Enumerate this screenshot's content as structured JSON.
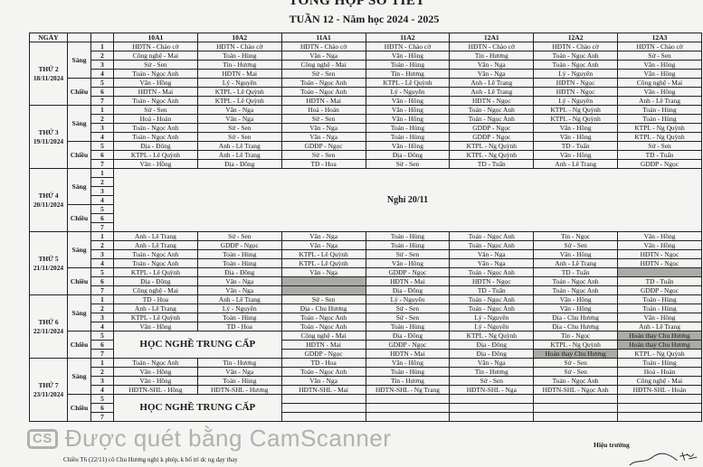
{
  "title": "TỔNG HỢP SỐ TIẾT",
  "subtitle": "TUẦN 12 - Năm học 2024 - 2025",
  "headers": {
    "day": "NGÀY",
    "classes": [
      "10A1",
      "10A2",
      "11A1",
      "11A2",
      "12A1",
      "12A2",
      "12A3"
    ]
  },
  "sessions": {
    "morning": "Sáng",
    "afternoon": "Chiều"
  },
  "periods": [
    "1",
    "2",
    "3",
    "4",
    "5",
    "6",
    "7"
  ],
  "shade_color": "#a9aba6",
  "days": [
    {
      "label": "THỨ 2",
      "date": "18/11/2024",
      "rows": [
        [
          "HĐTN - Chào cờ",
          "HĐTN - Chào cờ",
          "HĐTN - Chào cờ",
          "HĐTN - Chào cờ",
          "HĐTN - Chào cờ",
          "HĐTN - Chào cờ",
          "HĐTN - Chào cờ"
        ],
        [
          "Công nghệ - Mai",
          "Toán - Hùng",
          "Văn - Nga",
          "Văn - Hồng",
          "Tin - Hương",
          "Toán - Ngọc Anh",
          "Sử - Sen"
        ],
        [
          "Sử - Sen",
          "Tin - Hương",
          "Công nghệ - Mai",
          "Toán - Hùng",
          "Văn - Nga",
          "Toán - Ngọc Anh",
          "Văn - Hồng"
        ],
        [
          "Toán - Ngọc Anh",
          "HĐTN - Mai",
          "Sử - Sen",
          "Tin - Hương",
          "Văn - Nga",
          "Lý - Nguyên",
          "Văn - Hồng"
        ],
        [
          "Văn - Hồng",
          "Lý - Nguyên",
          "Toán - Ngọc Anh",
          "KTPL - Lê Quỳnh",
          "Anh - Lê Trang",
          "HĐTN - Ngọc",
          "Công nghệ - Mai"
        ],
        [
          "HĐTN - Mai",
          "KTPL - Lê Quỳnh",
          "Toán - Ngọc Anh",
          "Lý - Nguyên",
          "Anh - Lê Trang",
          "HĐTN - Ngọc",
          "Văn - Hồng"
        ],
        [
          "Toán - Ngọc Anh",
          "KTPL - Lê Quỳnh",
          "HĐTN - Mai",
          "Văn - Hồng",
          "HĐTN - Ngọc",
          "Lý - Nguyên",
          "Anh - Lê Trang"
        ]
      ]
    },
    {
      "label": "THỨ 3",
      "date": "19/11/2024",
      "rows": [
        [
          "Sử - Sen",
          "Văn - Nga",
          "Hoá - Hoán",
          "Văn - Hồng",
          "Toán - Ngọc Anh",
          "KTPL - Ng Quỳnh",
          "Toán - Hùng"
        ],
        [
          "Hoá - Hoán",
          "Văn - Nga",
          "Sử - Sen",
          "Văn - Hồng",
          "Toán - Ngọc Anh",
          "KTPL - Ng Quỳnh",
          "Toán - Hùng"
        ],
        [
          "Toán - Ngọc Anh",
          "Sử - Sen",
          "Văn - Nga",
          "Toán - Hùng",
          "GDĐP - Ngọc",
          "Văn - Hồng",
          "KTPL - Ng Quỳnh"
        ],
        [
          "Toán - Ngọc Anh",
          "Sử - Sen",
          "Văn - Nga",
          "Toán - Hùng",
          "GDĐP - Ngọc",
          "Văn - Hồng",
          "KTPL - Ng Quỳnh"
        ],
        [
          "Địa - Đông",
          "Anh - Lê Trang",
          "GDĐP - Ngọc",
          "Văn - Hồng",
          "KTPL - Ng Quỳnh",
          "TD - Tuấn",
          "Sử - Sen"
        ],
        [
          "KTPL - Lê Quỳnh",
          "Anh - Lê Trang",
          "Sử - Sen",
          "Địa - Đông",
          "KTPL - Ng Quỳnh",
          "Văn - Hồng",
          "TD - Tuấn"
        ],
        [
          "Văn - Hồng",
          "Địa - Đông",
          "TD - Hoa",
          "Sử - Sen",
          "TD - Tuấn",
          "Anh - Lê Trang",
          "GDĐP - Ngọc"
        ]
      ]
    },
    {
      "label": "THỨ 4",
      "date": "20/11/2024",
      "holiday": "Nghỉ 20/11"
    },
    {
      "label": "THỨ 5",
      "date": "21/11/2024",
      "rows": [
        [
          "Anh - Lê Trang",
          "Sử - Sen",
          "Văn - Nga",
          "Toán - Hùng",
          "Toán - Ngọc Anh",
          "Tin - Ngọc",
          "Văn - Hồng"
        ],
        [
          "Anh - Lê Trang",
          "GDĐP - Ngọc",
          "Văn - Nga",
          "Toán - Hùng",
          "Toán - Ngọc Anh",
          "Sử - Sen",
          "Văn - Hồng"
        ],
        [
          "Toán - Ngọc Anh",
          "Toán - Hùng",
          "KTPL - Lê Quỳnh",
          "Sử - Sen",
          "Văn - Nga",
          "Văn - Hồng",
          "HĐTN - Ngọc"
        ],
        [
          "Toán - Ngọc Anh",
          "Toán - Hùng",
          "KTPL - Lê Quỳnh",
          "Văn - Hồng",
          "Văn - Nga",
          "Anh - Lê Trang",
          "HĐTN - Ngọc"
        ],
        [
          "KTPL - Lê Quỳnh",
          "Địa - Đông",
          "Văn - Nga",
          "GDĐP - Ngọc",
          "Toán - Ngọc Anh",
          "TD - Tuấn",
          ""
        ],
        [
          "Địa - Đông",
          "Văn - Nga",
          "",
          "HĐTN - Mai",
          "HĐTN - Ngọc",
          "Toán - Ngọc Anh",
          "TD - Tuấn"
        ],
        [
          "Công nghệ - Mai",
          "Văn - Nga",
          "",
          "Địa - Đông",
          "TD - Tuấn",
          "Toán - Ngọc Anh",
          "GDĐP - Ngọc"
        ]
      ],
      "shaded": [
        [
          5,
          6
        ],
        [
          6,
          2
        ],
        [
          7,
          2
        ]
      ]
    },
    {
      "label": "THỨ 6",
      "date": "22/11/2024",
      "afternoon_merge": "HỌC NGHỀ TRUNG CẤP",
      "rows": [
        [
          "TD - Hoa",
          "Anh - Lê Trang",
          "Sử - Sen",
          "Lý - Nguyên",
          "Toán - Ngọc Anh",
          "Văn - Hồng",
          "Toán - Hùng"
        ],
        [
          "Anh - Lê Trang",
          "Lý - Nguyên",
          "Địa - Chu Hương",
          "Sử - Sen",
          "Toán - Ngọc Anh",
          "Văn - Hồng",
          "Toán - Hùng"
        ],
        [
          "KTPL - Lê Quỳnh",
          "Toán - Hùng",
          "Toán - Ngọc Anh",
          "Sử - Sen",
          "Lý - Nguyên",
          "Địa - Chu Hương",
          "Văn - Hồng"
        ],
        [
          "Văn - Hồng",
          "TD - Hoa",
          "Toán - Ngọc Anh",
          "Toán - Hùng",
          "Lý - Nguyên",
          "Địa - Chu Hương",
          "Anh - Lê Trang"
        ],
        [
          "",
          "",
          "Công nghệ - Mai",
          "Địa - Đông",
          "KTPL - Ng Quỳnh",
          "Tin - Ngọc",
          "Hoán thay Chu Hương"
        ],
        [
          "",
          "",
          "HĐTN - Mai",
          "GDĐP - Ngọc",
          "Địa - Đông",
          "KTPL - Ng Quỳnh",
          "Hoán thay Chu Hương"
        ],
        [
          "",
          "",
          "GDĐP - Ngọc",
          "HĐTN - Mai",
          "Địa - Đông",
          "Hoán thay Chu Hương",
          "KTPL - Ng Quỳnh"
        ]
      ],
      "shaded": [
        [
          5,
          6
        ],
        [
          6,
          6
        ],
        [
          7,
          5
        ]
      ]
    },
    {
      "label": "THỨ 7",
      "date": "23/11/2024",
      "afternoon_merge": "HỌC NGHỀ TRUNG CẤP",
      "rows": [
        [
          "Toán - Ngọc Anh",
          "Tin - Hương",
          "TD - Hoa",
          "Văn - Hồng",
          "Văn - Nga",
          "Sử - Sen",
          "Toán - Hùng"
        ],
        [
          "Văn - Hồng",
          "Văn - Nga",
          "Toán - Ngọc Anh",
          "Toán - Hùng",
          "Tin - Hương",
          "Sử - Sen",
          "Hoá - Hoán"
        ],
        [
          "Văn - Hồng",
          "Toán - Hùng",
          "Văn - Nga",
          "Tin - Hương",
          "Sử - Sen",
          "Toán - Ngọc Anh",
          "Công nghệ - Mai"
        ],
        [
          "HĐTN-SHL - Hồng",
          "HĐTN-SHL - Hương",
          "HĐTN-SHL - Mai",
          "HĐTN-SHL - Ng Trang",
          "HĐTN-SHL - Nga",
          "HĐTN-SHL - Ngọc Anh",
          "HĐTN-SHL - Hoán"
        ],
        [
          "",
          "",
          "",
          "",
          "",
          "",
          ""
        ],
        [
          "",
          "",
          "",
          "",
          "",
          "",
          ""
        ],
        [
          "",
          "",
          "",
          "",
          "",
          "",
          ""
        ]
      ]
    }
  ],
  "footnote": "Chiều T6 (22/11) cô Chu Hương nghỉ k phép, k bố trí dc ng dạy thay",
  "signature_title": "Hiệu trưởng",
  "watermark": {
    "logo": "CS",
    "text": "Được quét bằng CamScanner"
  }
}
